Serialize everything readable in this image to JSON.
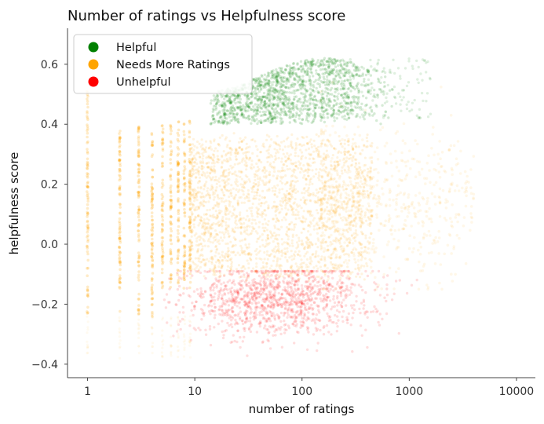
{
  "chart_data": {
    "type": "scatter",
    "title": "Number of ratings vs Helpfulness score",
    "xlabel": "number of ratings",
    "ylabel": "helpfulness score",
    "x_scale": "log",
    "xlim": [
      0.65,
      15000
    ],
    "ylim": [
      -0.445,
      0.72
    ],
    "x_ticks": [
      1,
      10,
      100,
      1000,
      10000
    ],
    "x_tick_labels": [
      "1",
      "10",
      "100",
      "1000",
      "10000"
    ],
    "y_ticks": [
      -0.4,
      -0.2,
      0.0,
      0.2,
      0.4,
      0.6
    ],
    "y_tick_labels": [
      "−0.4",
      "−0.2",
      "0.0",
      "0.2",
      "0.4",
      "0.6"
    ],
    "grid": false,
    "legend_position": "top-left",
    "series": [
      {
        "name": "Helpful",
        "color": "#008000",
        "x_range": [
          15,
          3000
        ],
        "y_range": [
          0.4,
          0.66
        ],
        "center": {
          "x": 150,
          "y": 0.49
        }
      },
      {
        "name": "Needs More Ratings",
        "color": "#FFA500",
        "x_range": [
          1,
          4000
        ],
        "y_range": [
          -0.37,
          0.56
        ],
        "center": {
          "x": 40,
          "y": 0.15
        }
      },
      {
        "name": "Unhelpful",
        "color": "#FF0000",
        "x_range": [
          5,
          2600
        ],
        "y_range": [
          -0.39,
          -0.08
        ],
        "center": {
          "x": 60,
          "y": -0.18
        }
      }
    ]
  }
}
